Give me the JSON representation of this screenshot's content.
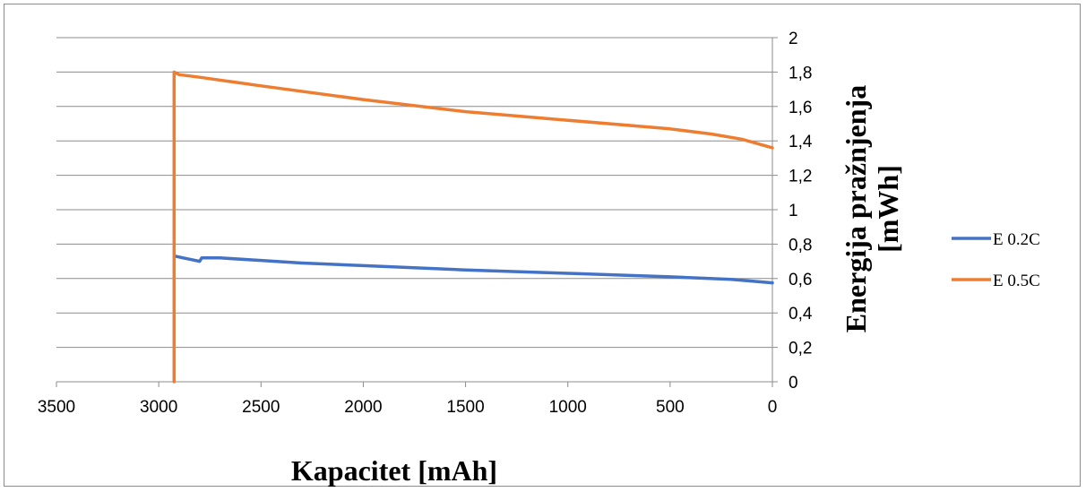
{
  "chart_data": {
    "type": "line",
    "title": "",
    "xlabel": "Kapacitet [mAh]",
    "ylabel_lines": [
      "Energija pražnjenja",
      "[mWh]"
    ],
    "x_reversed": true,
    "xlim": [
      0,
      3500
    ],
    "ylim": [
      0,
      2
    ],
    "x_ticks": [
      3500,
      3000,
      2500,
      2000,
      1500,
      1000,
      500,
      0
    ],
    "x_tick_labels": [
      "3500",
      "3000",
      "2500",
      "2000",
      "1500",
      "1000",
      "500",
      "0"
    ],
    "y_ticks": [
      0,
      0.2,
      0.4,
      0.6,
      0.8,
      1,
      1.2,
      1.4,
      1.6,
      1.8,
      2
    ],
    "y_tick_labels": [
      "0",
      "0,2",
      "0,4",
      "0,6",
      "0,8",
      "1",
      "1,2",
      "1,4",
      "1,6",
      "1,8",
      "2"
    ],
    "y_axis_side": "right",
    "grid": "horizontal",
    "legend_position": "right",
    "series": [
      {
        "name": "E 0.2C",
        "color": "#4472c4",
        "points": [
          [
            2920,
            0.73
          ],
          [
            2880,
            0.72
          ],
          [
            2840,
            0.71
          ],
          [
            2800,
            0.7
          ],
          [
            2790,
            0.72
          ],
          [
            2700,
            0.72
          ],
          [
            2500,
            0.705
          ],
          [
            2300,
            0.69
          ],
          [
            2000,
            0.675
          ],
          [
            1500,
            0.65
          ],
          [
            1000,
            0.63
          ],
          [
            500,
            0.61
          ],
          [
            200,
            0.595
          ],
          [
            0,
            0.575
          ]
        ]
      },
      {
        "name": "E 0.5C",
        "color": "#ed7d31",
        "points": [
          [
            2925,
            0.0
          ],
          [
            2925,
            1.8
          ],
          [
            2900,
            1.785
          ],
          [
            2800,
            1.77
          ],
          [
            2500,
            1.72
          ],
          [
            2000,
            1.64
          ],
          [
            1500,
            1.57
          ],
          [
            1000,
            1.52
          ],
          [
            500,
            1.47
          ],
          [
            300,
            1.44
          ],
          [
            150,
            1.41
          ],
          [
            0,
            1.36
          ]
        ]
      }
    ]
  }
}
